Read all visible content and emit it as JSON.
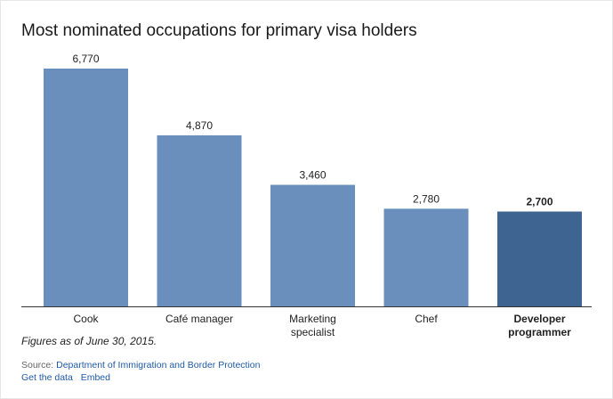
{
  "title": "Most nominated occupations for primary visa holders",
  "note": "Figures as of June 30, 2015.",
  "source": {
    "label": "Source: ",
    "link_text": "Department of Immigration and Border Protection"
  },
  "links": {
    "get_data": "Get the data",
    "embed": "Embed"
  },
  "colors": {
    "bar": "#6a8fbc",
    "highlight": "#3e6592",
    "baseline": "#333333"
  },
  "chart_data": {
    "type": "bar",
    "categories": [
      "Cook",
      "Café manager",
      "Marketing specialist",
      "Chef",
      "Developer programmer"
    ],
    "category_lines": [
      [
        "Cook"
      ],
      [
        "Café manager"
      ],
      [
        "Marketing",
        "specialist"
      ],
      [
        "Chef"
      ],
      [
        "Developer",
        "programmer"
      ]
    ],
    "values": [
      6770,
      4870,
      3460,
      2780,
      2700
    ],
    "value_labels": [
      "6,770",
      "4,870",
      "3,460",
      "2,780",
      "2,700"
    ],
    "highlight_index": 4,
    "title": "Most nominated occupations for primary visa holders",
    "xlabel": "",
    "ylabel": "",
    "ylim": [
      0,
      6770
    ],
    "grid": false,
    "legend": "none"
  }
}
